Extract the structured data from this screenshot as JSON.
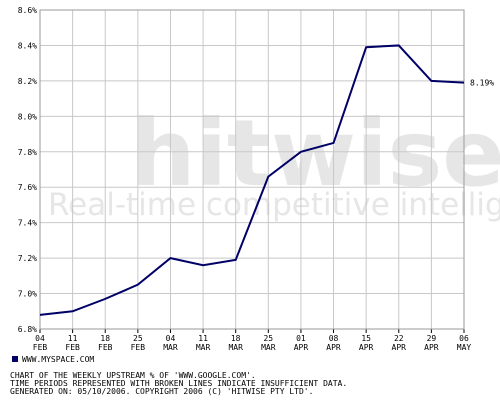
{
  "chart_data": {
    "type": "line",
    "categories": [
      "04 FEB",
      "11 FEB",
      "18 FEB",
      "25 FEB",
      "04 MAR",
      "11 MAR",
      "18 MAR",
      "25 MAR",
      "01 APR",
      "08 APR",
      "15 APR",
      "22 APR",
      "29 APR",
      "06 MAY"
    ],
    "series": [
      {
        "name": "WWW.MYSPACE.COM",
        "color": "#000066",
        "values": [
          6.88,
          6.9,
          6.97,
          7.05,
          7.2,
          7.16,
          7.19,
          7.66,
          7.8,
          7.85,
          8.39,
          8.4,
          8.2,
          8.19
        ],
        "value_labels": [
          null,
          null,
          null,
          null,
          null,
          null,
          null,
          null,
          null,
          null,
          null,
          null,
          null,
          "8.19%"
        ]
      }
    ],
    "ylim": [
      6.8,
      8.6
    ],
    "yticks": [
      {
        "value": 6.8,
        "label": "6.8%"
      },
      {
        "value": 7.0,
        "label": "7.0%"
      },
      {
        "value": 7.2,
        "label": "7.2%"
      },
      {
        "value": 7.4,
        "label": "7.4%"
      },
      {
        "value": 7.6,
        "label": "7.6%"
      },
      {
        "value": 7.8,
        "label": "7.8%"
      },
      {
        "value": 8.0,
        "label": "8.0%"
      },
      {
        "value": 8.2,
        "label": "8.2%"
      },
      {
        "value": 8.4,
        "label": "8.4%"
      },
      {
        "value": 8.6,
        "label": "8.6%"
      }
    ],
    "grid": true,
    "watermark": {
      "brand": "hitwise",
      "tagline": "Real-time competitive intelligence"
    },
    "notes": [
      "CHART OF THE WEEKLY UPSTREAM % OF 'WWW.GOOGLE.COM'.",
      "TIME PERIODS REPRESENTED WITH BROKEN LINES INDICATE INSUFFICIENT DATA.",
      "GENERATED ON: 05/10/2006. COPYRIGHT 2006 (C) 'HITWISE PTY LTD'."
    ]
  }
}
